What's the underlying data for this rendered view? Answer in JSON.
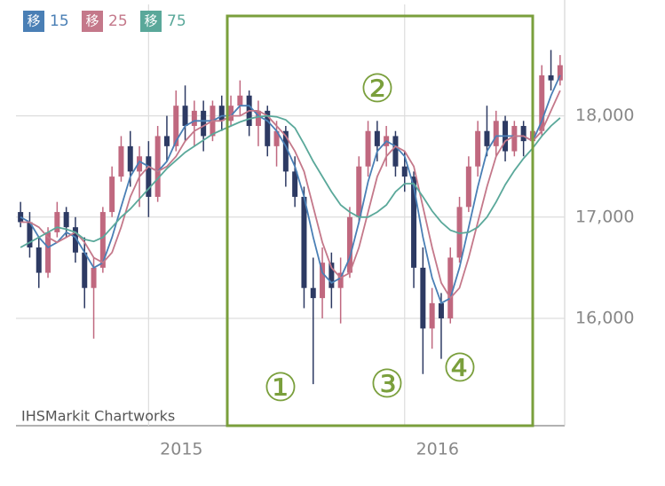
{
  "chart_data": {
    "type": "candlestick",
    "categories": [
      null,
      null,
      null,
      null,
      null,
      null,
      null,
      null,
      null,
      null,
      null,
      null,
      null,
      null,
      "2015",
      null,
      null,
      null,
      null,
      null,
      null,
      null,
      null,
      null,
      null,
      null,
      null,
      null,
      null,
      null,
      null,
      null,
      null,
      null,
      null,
      null,
      null,
      null,
      null,
      null,
      null,
      null,
      "2016",
      null,
      null,
      null,
      null,
      null,
      null,
      null,
      null,
      null,
      null,
      null,
      null,
      null,
      null,
      null,
      null,
      null
    ],
    "open": [
      17050,
      16950,
      16700,
      16450,
      16850,
      17050,
      16900,
      16650,
      16300,
      16500,
      17050,
      17400,
      17700,
      17450,
      17600,
      17200,
      17800,
      17700,
      18100,
      17900,
      18050,
      17800,
      18100,
      17950,
      18100,
      18200,
      17900,
      18050,
      17700,
      17850,
      17450,
      17200,
      16300,
      16200,
      16550,
      16300,
      16450,
      17000,
      17500,
      17850,
      17700,
      17800,
      17500,
      17400,
      16500,
      15900,
      16150,
      16000,
      16600,
      17100,
      17500,
      17850,
      17700,
      17950,
      17650,
      17900,
      17750,
      17850,
      18400,
      18350
    ],
    "high": [
      17150,
      17050,
      16800,
      16900,
      17150,
      17100,
      17000,
      16800,
      16600,
      17100,
      17500,
      17800,
      17850,
      17700,
      17750,
      17900,
      18000,
      18250,
      18300,
      18150,
      18150,
      18150,
      18200,
      18200,
      18350,
      18250,
      18150,
      18100,
      17950,
      17900,
      17600,
      17300,
      16600,
      16700,
      16650,
      16600,
      17100,
      17600,
      17950,
      17950,
      17900,
      17850,
      17650,
      17450,
      16700,
      16300,
      16250,
      16700,
      17200,
      17600,
      17950,
      18100,
      18050,
      18000,
      17950,
      17950,
      17950,
      18500,
      18650,
      18600
    ],
    "low": [
      16900,
      16600,
      16300,
      16400,
      16800,
      16800,
      16550,
      16100,
      15800,
      16450,
      17000,
      17350,
      17300,
      17100,
      17000,
      17150,
      17550,
      17650,
      17750,
      17700,
      17650,
      17750,
      17850,
      17900,
      18000,
      17800,
      17700,
      17600,
      17500,
      17300,
      17100,
      16100,
      15350,
      16000,
      16100,
      15950,
      16400,
      16950,
      17400,
      17550,
      17500,
      17400,
      17250,
      16300,
      15450,
      15700,
      15600,
      15950,
      16550,
      17050,
      17400,
      17600,
      17600,
      17550,
      17600,
      17600,
      17050,
      17800,
      18250,
      18300
    ],
    "close": [
      16950,
      16700,
      16450,
      16850,
      17050,
      16900,
      16650,
      16300,
      16500,
      17050,
      17400,
      17700,
      17450,
      17600,
      17200,
      17800,
      17700,
      18100,
      17900,
      18050,
      17800,
      18100,
      17950,
      18100,
      18200,
      17900,
      18050,
      17700,
      17850,
      17450,
      17200,
      16300,
      16200,
      16550,
      16300,
      16450,
      17000,
      17500,
      17850,
      17700,
      17800,
      17500,
      17400,
      16500,
      15900,
      16150,
      16000,
      16600,
      17100,
      17500,
      17850,
      17700,
      17950,
      17650,
      17900,
      17750,
      17850,
      18400,
      18350,
      18500
    ],
    "up_color": "#c0687f",
    "down_color": "#2d3a63",
    "series": [
      {
        "badge": "移",
        "name": "15",
        "color": "#4a7fb5",
        "values": [
          17000,
          16950,
          16800,
          16700,
          16750,
          16850,
          16800,
          16650,
          16500,
          16550,
          16800,
          17100,
          17400,
          17550,
          17500,
          17450,
          17550,
          17750,
          17900,
          17950,
          17950,
          17950,
          18000,
          18000,
          18100,
          18100,
          18000,
          17950,
          17850,
          17700,
          17500,
          17200,
          16800,
          16450,
          16350,
          16400,
          16600,
          16950,
          17350,
          17650,
          17750,
          17700,
          17600,
          17300,
          16800,
          16400,
          16150,
          16200,
          16500,
          16900,
          17300,
          17650,
          17800,
          17800,
          17800,
          17800,
          17750,
          17950,
          18200,
          18400
        ]
      },
      {
        "badge": "移",
        "name": "25",
        "color": "#c4788a",
        "values": [
          16950,
          16950,
          16900,
          16800,
          16750,
          16800,
          16850,
          16750,
          16600,
          16550,
          16650,
          16900,
          17200,
          17400,
          17500,
          17450,
          17500,
          17600,
          17750,
          17850,
          17900,
          17950,
          17950,
          18000,
          18000,
          18050,
          18050,
          18000,
          17900,
          17800,
          17650,
          17450,
          17100,
          16750,
          16500,
          16400,
          16450,
          16700,
          17050,
          17400,
          17600,
          17700,
          17650,
          17500,
          17100,
          16700,
          16350,
          16200,
          16300,
          16600,
          16950,
          17300,
          17600,
          17750,
          17800,
          17800,
          17750,
          17850,
          18050,
          18250
        ]
      },
      {
        "badge": "移",
        "name": "75",
        "color": "#5aa89a",
        "values": [
          16700,
          16750,
          16800,
          16850,
          16900,
          16880,
          16850,
          16780,
          16760,
          16800,
          16900,
          17000,
          17080,
          17180,
          17280,
          17380,
          17480,
          17560,
          17640,
          17700,
          17760,
          17820,
          17860,
          17900,
          17940,
          17970,
          17990,
          18000,
          17990,
          17960,
          17880,
          17720,
          17550,
          17400,
          17250,
          17120,
          17050,
          17000,
          17000,
          17050,
          17120,
          17250,
          17330,
          17330,
          17200,
          17060,
          16950,
          16870,
          16840,
          16850,
          16900,
          17000,
          17150,
          17320,
          17460,
          17580,
          17680,
          17800,
          17900,
          17980
        ]
      }
    ],
    "ylim": [
      14940,
      19100
    ],
    "yticks": [
      {
        "value": 16000,
        "label": "16,000"
      },
      {
        "value": 17000,
        "label": "17,000"
      },
      {
        "value": 18000,
        "label": "18,000"
      }
    ],
    "grid": true,
    "annotations": [
      "①",
      "②",
      "③",
      "④"
    ],
    "watermark": "IHSMarkit Chartworks"
  }
}
